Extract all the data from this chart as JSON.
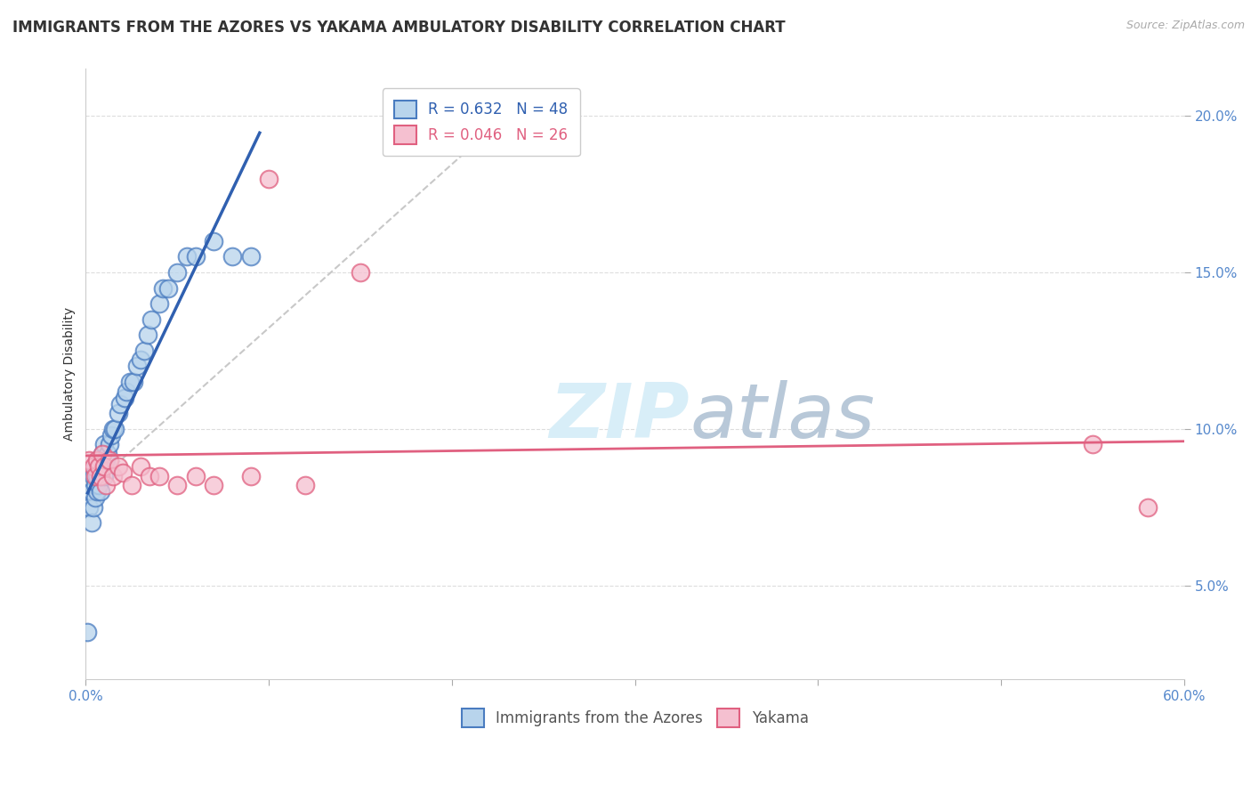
{
  "title": "IMMIGRANTS FROM THE AZORES VS YAKAMA AMBULATORY DISABILITY CORRELATION CHART",
  "source": "Source: ZipAtlas.com",
  "ylabel": "Ambulatory Disability",
  "xlim": [
    0.0,
    0.6
  ],
  "ylim": [
    0.02,
    0.215
  ],
  "xticks": [
    0.0,
    0.1,
    0.2,
    0.3,
    0.4,
    0.5,
    0.6
  ],
  "xticklabels": [
    "0.0%",
    "",
    "",
    "",
    "",
    "",
    "60.0%"
  ],
  "yticks": [
    0.05,
    0.1,
    0.15,
    0.2
  ],
  "yticklabels": [
    "5.0%",
    "10.0%",
    "15.0%",
    "20.0%"
  ],
  "legend1_r": "0.632",
  "legend1_n": "48",
  "legend2_r": "0.046",
  "legend2_n": "26",
  "blue_fill": "#b8d4ec",
  "blue_edge": "#4a7cc0",
  "pink_fill": "#f5c0d0",
  "pink_edge": "#e06080",
  "blue_line_color": "#3060b0",
  "pink_line_color": "#e06080",
  "dash_color": "#c8c8c8",
  "watermark_color": "#d8eef8",
  "blue_scatter_x": [
    0.001,
    0.002,
    0.003,
    0.003,
    0.004,
    0.004,
    0.005,
    0.005,
    0.005,
    0.006,
    0.006,
    0.006,
    0.007,
    0.007,
    0.008,
    0.008,
    0.008,
    0.009,
    0.009,
    0.01,
    0.01,
    0.01,
    0.011,
    0.012,
    0.013,
    0.014,
    0.015,
    0.016,
    0.018,
    0.019,
    0.021,
    0.022,
    0.024,
    0.026,
    0.028,
    0.03,
    0.032,
    0.034,
    0.036,
    0.04,
    0.042,
    0.045,
    0.05,
    0.055,
    0.06,
    0.07,
    0.08,
    0.09
  ],
  "blue_scatter_y": [
    0.035,
    0.075,
    0.07,
    0.08,
    0.075,
    0.085,
    0.078,
    0.082,
    0.088,
    0.08,
    0.085,
    0.09,
    0.082,
    0.088,
    0.08,
    0.085,
    0.09,
    0.088,
    0.092,
    0.085,
    0.09,
    0.095,
    0.09,
    0.092,
    0.095,
    0.098,
    0.1,
    0.1,
    0.105,
    0.108,
    0.11,
    0.112,
    0.115,
    0.115,
    0.12,
    0.122,
    0.125,
    0.13,
    0.135,
    0.14,
    0.145,
    0.145,
    0.15,
    0.155,
    0.155,
    0.16,
    0.155,
    0.155
  ],
  "pink_scatter_x": [
    0.002,
    0.004,
    0.005,
    0.006,
    0.007,
    0.008,
    0.009,
    0.01,
    0.011,
    0.013,
    0.015,
    0.018,
    0.02,
    0.025,
    0.03,
    0.035,
    0.04,
    0.05,
    0.06,
    0.07,
    0.09,
    0.1,
    0.12,
    0.15,
    0.55,
    0.58
  ],
  "pink_scatter_y": [
    0.09,
    0.088,
    0.085,
    0.09,
    0.088,
    0.085,
    0.092,
    0.088,
    0.082,
    0.09,
    0.085,
    0.088,
    0.086,
    0.082,
    0.088,
    0.085,
    0.085,
    0.082,
    0.085,
    0.082,
    0.085,
    0.18,
    0.082,
    0.15,
    0.095,
    0.075
  ],
  "title_fontsize": 12,
  "axis_label_fontsize": 10,
  "tick_fontsize": 11,
  "legend_fontsize": 12,
  "source_fontsize": 9
}
